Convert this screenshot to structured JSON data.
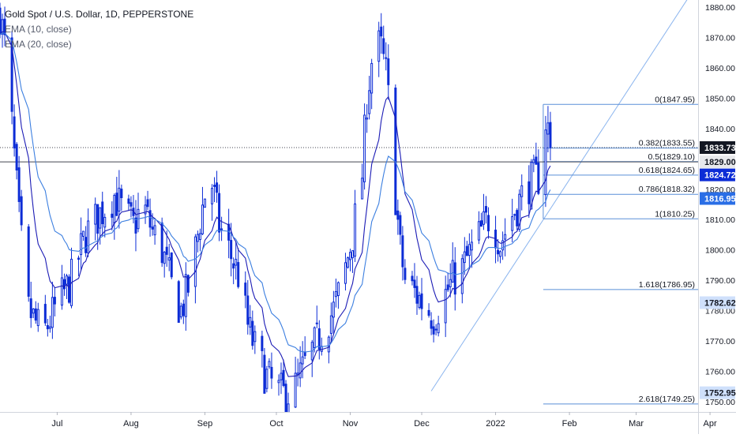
{
  "legend": {
    "title": "Gold Spot / U.S. Dollar, 1D, PEPPERSTONE",
    "ema10": "EMA (10, close)",
    "ema20": "EMA (20, close)"
  },
  "chart_data": {
    "type": "candlestick",
    "symbol": "Gold Spot / U.S. Dollar",
    "interval": "1D",
    "source": "PEPPERSTONE",
    "y_range": [
      1748,
      1884
    ],
    "y_ticks": [
      1750,
      1760,
      1770,
      1780,
      1790,
      1800,
      1810,
      1820,
      1830,
      1840,
      1850,
      1860,
      1870,
      1880
    ],
    "y_tick_labels": [
      "1750.00",
      "1760.00",
      "1770.00",
      "1780.00",
      "1790.00",
      "1800.00",
      "1810.00",
      "1820.00",
      "1830.00",
      "1840.00",
      "1850.00",
      "1860.00",
      "1870.00",
      "1880.00"
    ],
    "x_range_days": [
      -12,
      281
    ],
    "x_tick_labels": [
      {
        "label": "Jul",
        "day": 12
      },
      {
        "label": "Aug",
        "day": 43
      },
      {
        "label": "Sep",
        "day": 74
      },
      {
        "label": "Oct",
        "day": 104
      },
      {
        "label": "Nov",
        "day": 135
      },
      {
        "label": "Dec",
        "day": 165
      },
      {
        "label": "2022",
        "day": 196
      },
      {
        "label": "Feb",
        "day": 227
      },
      {
        "label": "Mar",
        "day": 255
      },
      {
        "label": "Apr",
        "day": 286
      }
    ],
    "price_path": [
      [
        -12,
        1878
      ],
      [
        -9,
        1862
      ],
      [
        -4,
        1810
      ],
      [
        0,
        1780
      ],
      [
        6,
        1772
      ],
      [
        12,
        1782
      ],
      [
        18,
        1790
      ],
      [
        24,
        1805
      ],
      [
        30,
        1812
      ],
      [
        36,
        1818
      ],
      [
        40,
        1812
      ],
      [
        44,
        1808
      ],
      [
        48,
        1815
      ],
      [
        52,
        1806
      ],
      [
        56,
        1800
      ],
      [
        60,
        1788
      ],
      [
        64,
        1780
      ],
      [
        68,
        1790
      ],
      [
        72,
        1810
      ],
      [
        76,
        1826
      ],
      [
        80,
        1808
      ],
      [
        84,
        1800
      ],
      [
        88,
        1792
      ],
      [
        92,
        1775
      ],
      [
        96,
        1765
      ],
      [
        100,
        1758
      ],
      [
        104,
        1754
      ],
      [
        108,
        1752
      ],
      [
        112,
        1755
      ],
      [
        116,
        1762
      ],
      [
        120,
        1768
      ],
      [
        124,
        1775
      ],
      [
        128,
        1780
      ],
      [
        132,
        1790
      ],
      [
        136,
        1805
      ],
      [
        140,
        1825
      ],
      [
        142,
        1850
      ],
      [
        144,
        1862
      ],
      [
        146,
        1868
      ],
      [
        148,
        1866
      ],
      [
        150,
        1858
      ],
      [
        152,
        1842
      ],
      [
        154,
        1818
      ],
      [
        156,
        1800
      ],
      [
        158,
        1790
      ],
      [
        162,
        1786
      ],
      [
        166,
        1782
      ],
      [
        170,
        1778
      ],
      [
        174,
        1784
      ],
      [
        178,
        1790
      ],
      [
        182,
        1794
      ],
      [
        186,
        1800
      ],
      [
        190,
        1806
      ],
      [
        194,
        1812
      ],
      [
        198,
        1802
      ],
      [
        202,
        1810
      ],
      [
        206,
        1816
      ],
      [
        210,
        1822
      ],
      [
        214,
        1824
      ],
      [
        216,
        1845
      ],
      [
        218,
        1840
      ],
      [
        219,
        1833.73
      ]
    ],
    "trendline": {
      "from": {
        "day": 169,
        "price": 1753.5
      },
      "to": {
        "day": 281,
        "price": 1888
      }
    },
    "fibonacci": {
      "start_day": 216,
      "levels": [
        {
          "ratio": "0",
          "price": 1847.95,
          "label": "0(1847.95)"
        },
        {
          "ratio": "0.382",
          "price": 1833.55,
          "label": "0.382(1833.55)"
        },
        {
          "ratio": "0.5",
          "price": 1829.1,
          "label": "0.5(1829.10)"
        },
        {
          "ratio": "0.618",
          "price": 1824.65,
          "label": "0.618(1824.65)"
        },
        {
          "ratio": "0.786",
          "price": 1818.32,
          "label": "0.786(1818.32)"
        },
        {
          "ratio": "1",
          "price": 1810.25,
          "label": "1(1810.25)"
        },
        {
          "ratio": "1.618",
          "price": 1786.95,
          "label": "1.618(1786.95)"
        },
        {
          "ratio": "2.618",
          "price": 1749.25,
          "label": "2.618(1749.25)"
        }
      ]
    },
    "horizontal_lines": [
      {
        "price": 1833.73,
        "style": "dotted"
      },
      {
        "price": 1829.0,
        "style": "solid"
      }
    ],
    "price_labels": [
      {
        "price": 1833.73,
        "text": "1833.73",
        "bg": "#131722",
        "fg": "#ffffff"
      },
      {
        "price": 1829.0,
        "text": "1829.00",
        "bg": "#e8e9ec",
        "fg": "#131722"
      },
      {
        "price": 1824.72,
        "text": "1824.72",
        "bg": "#0c2cd6",
        "fg": "#ffffff"
      },
      {
        "price": 1816.95,
        "text": "1816.95",
        "bg": "#2a6ee6",
        "fg": "#ffffff"
      },
      {
        "price": 1782.62,
        "text": "1782.62",
        "bg": "#cfe0fb",
        "fg": "#131722"
      },
      {
        "price": 1752.95,
        "text": "1752.95",
        "bg": "#cfe0fb",
        "fg": "#131722"
      }
    ],
    "colors": {
      "candle": "#0c2cd6",
      "ema10": "#1b1bb5",
      "ema20": "#3c7fe0",
      "fib": "#5a8fd8",
      "trend": "#8ab4ee",
      "axis_text": "#131722"
    },
    "grid": false
  }
}
